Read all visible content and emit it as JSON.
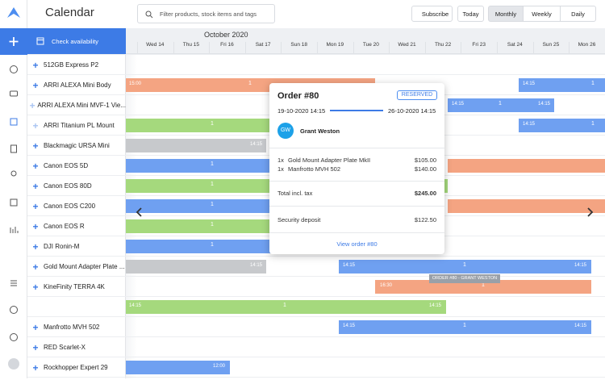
{
  "header": {
    "title": "Calendar",
    "search_placeholder": "Filter products, stock items and tags",
    "buttons": [
      "Subscribe",
      "Today",
      "Monthly",
      "Weekly",
      "Daily"
    ]
  },
  "sidebar": {
    "action": "Check availability",
    "products": [
      "512GB Express P2",
      "ARRI ALEXA Mini Body",
      "ARRI ALEXA Mini MVF-1 Vie...",
      "ARRI Titanium PL Mount",
      "Blackmagic URSA Mini",
      "Canon EOS 5D",
      "Canon EOS 80D",
      "Canon EOS C200",
      "Canon EOS R",
      "DJI Ronin-M",
      "Gold Mount Adapter Plate ...",
      "KineFinity TERRA 4K",
      "Manfrotto MVH 502",
      "RED Scarlet-X",
      "Rockhopper Expert 29"
    ]
  },
  "calendar": {
    "month": "October 2020",
    "days": [
      "Wed 14",
      "Thu 15",
      "Fri 16",
      "Sat 17",
      "Sun 18",
      "Mon 19",
      "Tue 20",
      "Wed 21",
      "Thu 22",
      "Fri 23",
      "Sat 24",
      "Sun 25",
      "Mon 26"
    ],
    "bars": [
      {
        "labels": [
          "15:00",
          "1"
        ]
      },
      {
        "labels": [
          "14:15",
          "1"
        ]
      },
      {
        "labels": [
          "14:15",
          "1",
          "14:15"
        ]
      },
      {
        "labels": [
          "1"
        ]
      },
      {
        "labels": [
          "14:15",
          "1"
        ]
      },
      {
        "labels": [
          "14:15"
        ]
      },
      {
        "labels": [
          "1"
        ]
      },
      {
        "labels": [
          "1"
        ]
      },
      {
        "labels": [
          "1"
        ]
      },
      {
        "labels": [
          "1"
        ]
      },
      {
        "labels": [
          "1"
        ]
      },
      {
        "labels": [
          "14:15"
        ]
      },
      {
        "labels": [
          "14:15",
          "1",
          "14:15"
        ]
      },
      {
        "labels": [
          "16:30",
          "1"
        ]
      },
      {
        "labels": [
          "14:15",
          "1",
          "14:15"
        ]
      },
      {
        "labels": [
          "14:15",
          "1",
          "14:15"
        ]
      },
      {
        "labels": [
          "12:00"
        ]
      }
    ],
    "tooltip": "ORDER #80 - GRANT WESTON"
  },
  "popup": {
    "title": "Order #80",
    "status": "RESERVED",
    "start": "19-10-2020 14:15",
    "end": "26-10-2020 14:15",
    "initials": "GW",
    "customer": "Grant Weston",
    "items": [
      {
        "qty": "1x",
        "name": "Gold Mount Adapter Plate MkII",
        "price": "$105.00"
      },
      {
        "qty": "1x",
        "name": "Manfrotto MVH 502",
        "price": "$140.00"
      }
    ],
    "total_label": "Total incl. tax",
    "total": "$245.00",
    "deposit_label": "Security deposit",
    "deposit": "$122.50",
    "link": "View order #80"
  }
}
